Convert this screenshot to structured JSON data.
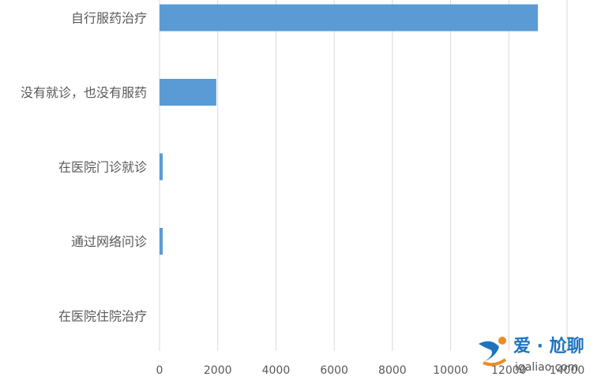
{
  "chart_data": {
    "type": "bar",
    "orientation": "horizontal",
    "categories": [
      "自行服药治疗",
      "没有就诊，也没有服药",
      "在医院门诊就诊",
      "通过网络问诊",
      "在医院住院治疗"
    ],
    "values": [
      13000,
      1950,
      110,
      110,
      0
    ],
    "xlim": [
      0,
      14000
    ],
    "xticks": [
      0,
      2000,
      4000,
      6000,
      8000,
      10000,
      12000,
      14000
    ],
    "xtick_labels": [
      "0",
      "2000",
      "4000",
      "6000",
      "8000",
      "10000",
      "12000",
      "14000"
    ],
    "bar_color": "#5b9bd5",
    "grid": true
  },
  "watermark": {
    "brand": "爱 · 尬聊",
    "url": "igaliao.com",
    "accent_color": "#1e73be"
  }
}
